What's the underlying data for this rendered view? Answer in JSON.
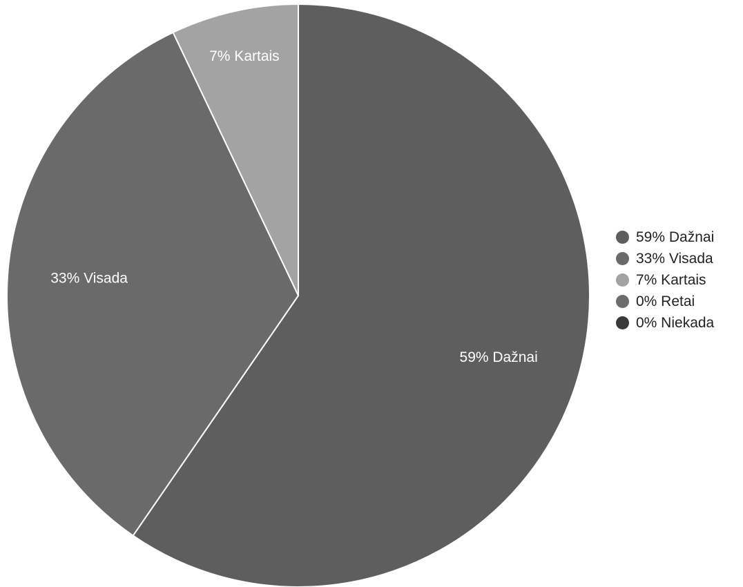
{
  "chart_data": {
    "type": "pie",
    "categories": [
      "Dažnai",
      "Visada",
      "Kartais",
      "Retai",
      "Niekada"
    ],
    "values": [
      59,
      33,
      7,
      0,
      0
    ],
    "slice_labels": [
      "59% Dažnai",
      "33% Visada",
      "7% Kartais",
      "",
      ""
    ],
    "legend": {
      "position": "right",
      "entries": [
        "59% Dažnai",
        "33% Visada",
        "7% Kartais",
        "0% Retai",
        "0% Niekada"
      ]
    },
    "colors": [
      "#5e5e5e",
      "#6a6a6a",
      "#a3a3a3",
      "#6c6c6c",
      "#3a3a3a"
    ],
    "start_angle": "top",
    "direction": "clockwise"
  }
}
